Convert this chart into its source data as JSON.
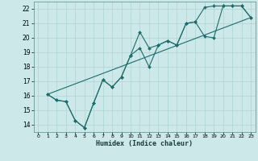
{
  "xlabel": "Humidex (Indice chaleur)",
  "xlim": [
    -0.5,
    23.5
  ],
  "ylim": [
    13.5,
    22.5
  ],
  "xticks": [
    0,
    1,
    2,
    3,
    4,
    5,
    6,
    7,
    8,
    9,
    10,
    11,
    12,
    13,
    14,
    15,
    16,
    17,
    18,
    19,
    20,
    21,
    22,
    23
  ],
  "yticks": [
    14,
    15,
    16,
    17,
    18,
    19,
    20,
    21,
    22
  ],
  "bg_color": "#cce8e8",
  "grid_color": "#aad4d4",
  "line_color": "#1a6e6e",
  "line1_x": [
    1,
    2,
    3,
    4,
    5,
    6,
    7,
    8,
    9,
    10,
    11,
    12,
    13,
    14,
    15,
    16,
    17,
    18,
    19,
    20,
    21,
    22,
    23
  ],
  "line1_y": [
    16.1,
    15.7,
    15.6,
    14.3,
    13.8,
    15.5,
    17.1,
    16.6,
    17.3,
    18.8,
    19.3,
    18.0,
    19.5,
    19.8,
    19.5,
    21.0,
    21.1,
    20.1,
    20.0,
    22.2,
    22.2,
    22.2,
    21.4
  ],
  "line2_x": [
    1,
    2,
    3,
    4,
    5,
    6,
    7,
    8,
    9,
    10,
    11,
    12,
    13,
    14,
    15,
    16,
    17,
    18,
    19,
    20,
    21,
    22,
    23
  ],
  "line2_y": [
    16.1,
    15.7,
    15.6,
    14.3,
    13.8,
    15.5,
    17.1,
    16.6,
    17.3,
    18.8,
    20.4,
    19.3,
    19.5,
    19.8,
    19.5,
    21.0,
    21.1,
    22.1,
    22.2,
    22.2,
    22.2,
    22.2,
    21.4
  ],
  "trend_x": [
    1,
    23
  ],
  "trend_y": [
    16.1,
    21.4
  ]
}
